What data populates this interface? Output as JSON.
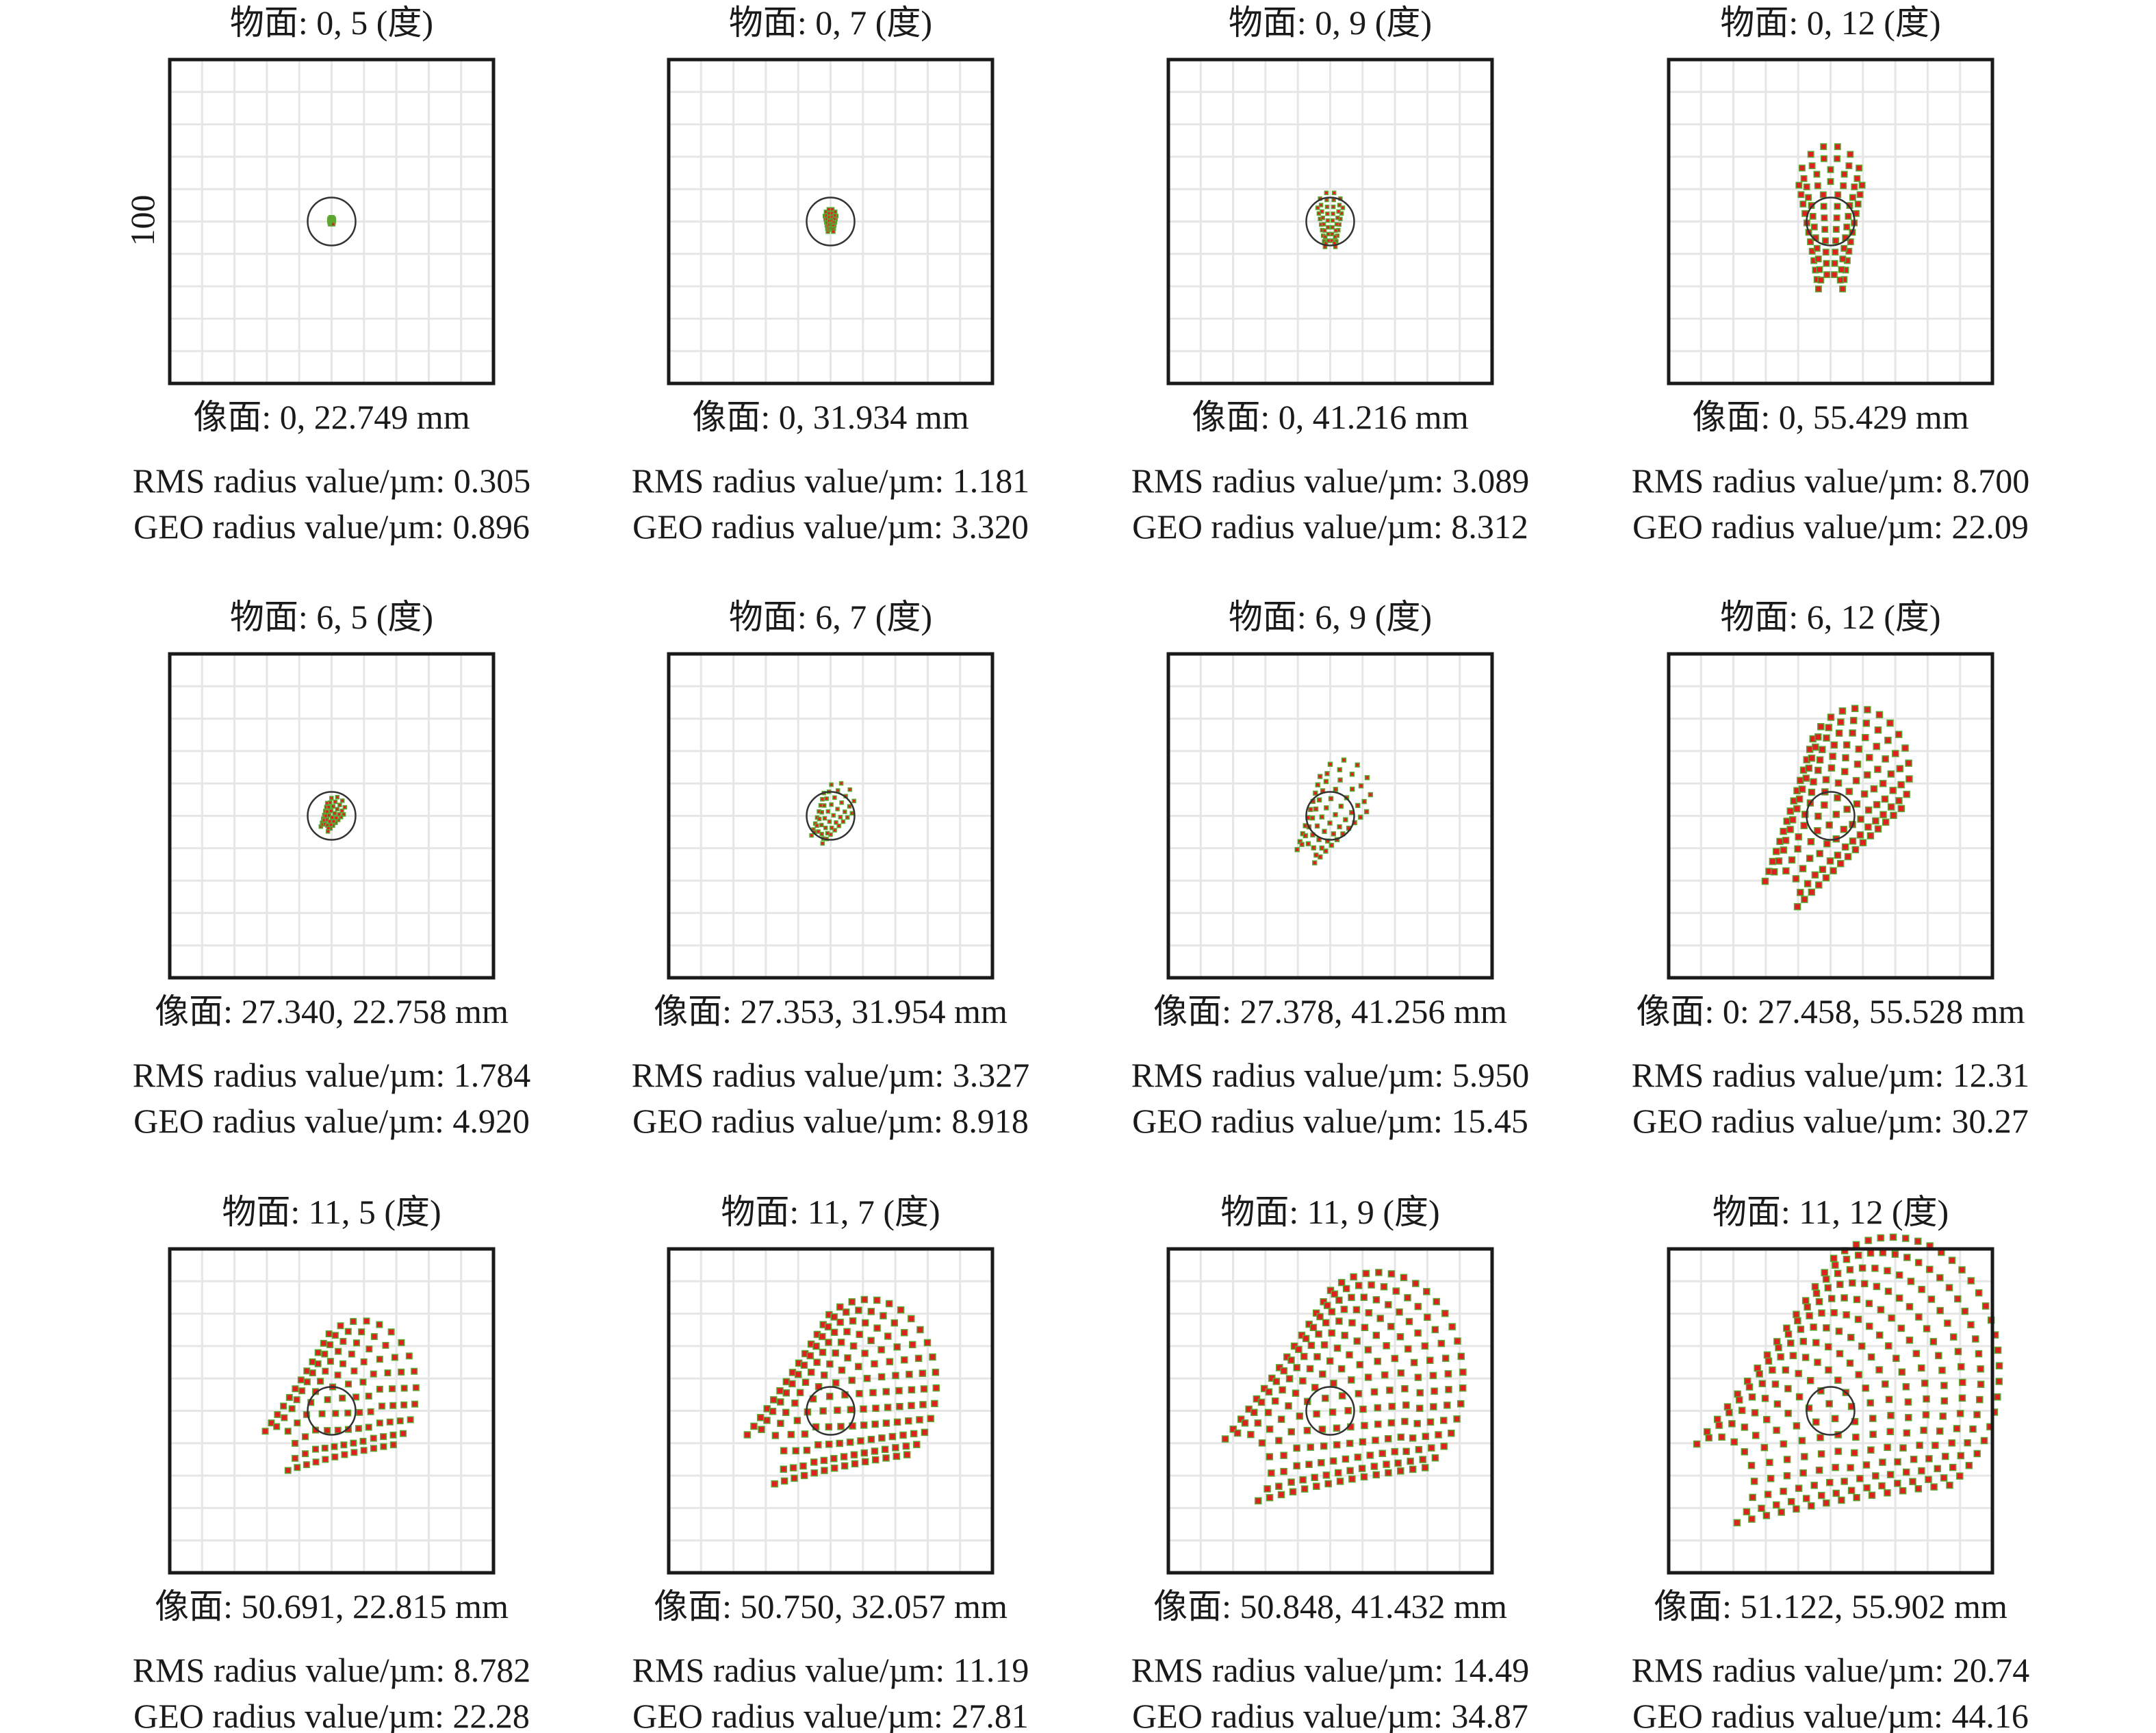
{
  "chart_data": {
    "type": "scatter",
    "scale_label": "100",
    "grid": true,
    "colors": {
      "ray_fill": "#e02020",
      "ray_edge": "#5aa832",
      "airy_circle": "#333333",
      "grid": "#e6e6e6",
      "frame": "#1a1a1a"
    },
    "panels": [
      {
        "title": "物面: 0, 5 (度)",
        "image": "像面: 0, 22.749 mm",
        "rms": "RMS radius value/µm: 0.305",
        "geo": "GEO radius value/µm: 0.896",
        "rms_um": 0.305,
        "geo_um": 0.896
      },
      {
        "title": "物面: 0, 7 (度)",
        "image": "像面: 0, 31.934 mm",
        "rms": "RMS radius value/µm: 1.181",
        "geo": "GEO radius value/µm: 3.320",
        "rms_um": 1.181,
        "geo_um": 3.32
      },
      {
        "title": "物面: 0, 9 (度)",
        "image": "像面: 0, 41.216 mm",
        "rms": "RMS radius value/µm: 3.089",
        "geo": "GEO radius value/µm: 8.312",
        "rms_um": 3.089,
        "geo_um": 8.312
      },
      {
        "title": "物面: 0, 12 (度)",
        "image": "像面: 0, 55.429 mm",
        "rms": "RMS radius value/µm: 8.700",
        "geo": "GEO radius value/µm: 22.09",
        "rms_um": 8.7,
        "geo_um": 22.09
      },
      {
        "title": "物面: 6, 5 (度)",
        "image": "像面: 27.340, 22.758 mm",
        "rms": "RMS radius value/µm: 1.784",
        "geo": "GEO radius value/µm: 4.920",
        "rms_um": 1.784,
        "geo_um": 4.92
      },
      {
        "title": "物面: 6, 7 (度)",
        "image": "像面: 27.353, 31.954 mm",
        "rms": "RMS radius value/µm: 3.327",
        "geo": "GEO radius value/µm: 8.918",
        "rms_um": 3.327,
        "geo_um": 8.918
      },
      {
        "title": "物面: 6, 9 (度)",
        "image": "像面: 27.378, 41.256 mm",
        "rms": "RMS radius value/µm: 5.950",
        "geo": "GEO radius value/µm: 15.45",
        "rms_um": 5.95,
        "geo_um": 15.45
      },
      {
        "title": "物面: 6, 12 (度)",
        "image": "像面: 0: 27.458, 55.528 mm",
        "rms": "RMS radius value/µm: 12.31",
        "geo": "GEO radius value/µm: 30.27",
        "rms_um": 12.31,
        "geo_um": 30.27
      },
      {
        "title": "物面: 11, 5 (度)",
        "image": "像面: 50.691, 22.815 mm",
        "rms": "RMS radius value/µm: 8.782",
        "geo": "GEO radius value/µm: 22.28",
        "rms_um": 8.782,
        "geo_um": 22.28
      },
      {
        "title": "物面: 11, 7 (度)",
        "image": "像面: 50.750, 32.057 mm",
        "rms": "RMS radius value/µm: 11.19",
        "geo": "GEO radius value/µm: 27.81",
        "rms_um": 11.19,
        "geo_um": 27.81
      },
      {
        "title": "物面: 11, 9 (度)",
        "image": "像面: 50.848, 41.432 mm",
        "rms": "RMS radius value/µm: 14.49",
        "geo": "GEO radius value/µm: 34.87",
        "rms_um": 14.49,
        "geo_um": 34.87
      },
      {
        "title": "物面: 11, 12 (度)",
        "image": "像面: 51.122, 55.902 mm",
        "rms": "RMS radius value/µm: 20.74",
        "geo": "GEO radius value/µm: 44.16",
        "rms_um": 20.74,
        "geo_um": 44.16
      }
    ]
  }
}
